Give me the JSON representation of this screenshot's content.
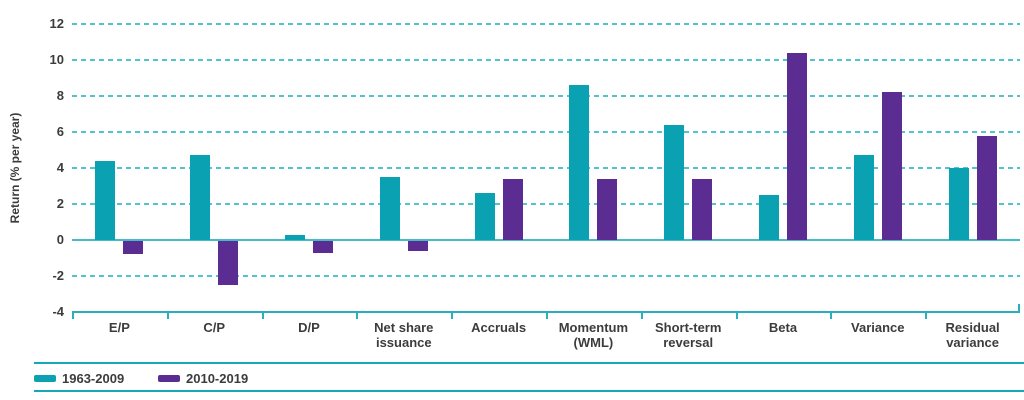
{
  "chart_data": {
    "type": "bar",
    "title": "",
    "xlabel": "",
    "ylabel": "Return (% per year)",
    "ylim": [
      -4,
      12
    ],
    "yticks": [
      12,
      10,
      8,
      6,
      4,
      2,
      0,
      -2,
      -4
    ],
    "grid": "horizontal dashed, zero line solid, baseline axis with downward ticks at category boundaries",
    "legend_position": "bottom-left",
    "categories": [
      {
        "lines": [
          "E/P"
        ]
      },
      {
        "lines": [
          "C/P"
        ]
      },
      {
        "lines": [
          "D/P"
        ]
      },
      {
        "lines": [
          "Net share",
          "issuance"
        ]
      },
      {
        "lines": [
          "Accruals"
        ]
      },
      {
        "lines": [
          "Momentum",
          "(WML)"
        ]
      },
      {
        "lines": [
          "Short-term",
          "reversal"
        ]
      },
      {
        "lines": [
          "Beta"
        ]
      },
      {
        "lines": [
          "Variance"
        ]
      },
      {
        "lines": [
          "Residual",
          "variance"
        ]
      }
    ],
    "series": [
      {
        "name": "1963-2009",
        "color": "#0aa2b2",
        "values": [
          4.4,
          4.7,
          0.3,
          3.5,
          2.6,
          8.6,
          6.4,
          2.5,
          4.7,
          4.0
        ]
      },
      {
        "name": "2010-2019",
        "color": "#5b2c91",
        "values": [
          -0.8,
          -2.5,
          -0.7,
          -0.6,
          3.4,
          3.4,
          3.4,
          10.4,
          8.2,
          5.8
        ]
      }
    ],
    "colors": {
      "gridline": "#53c3cc",
      "zero_line": "#45bcc7",
      "axis_line": "#2baebd",
      "legend_rule": "#14a9b8",
      "text": "#3c3c3e",
      "background": "#ffffff"
    }
  }
}
